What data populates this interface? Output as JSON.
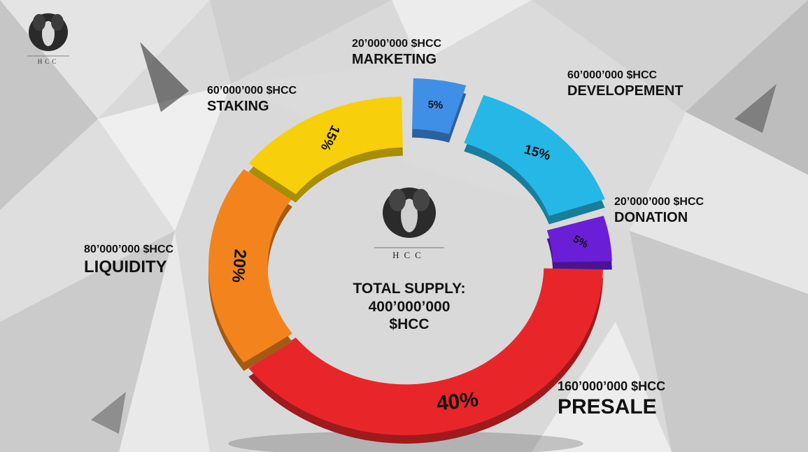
{
  "brand": {
    "logo_text": "HCC"
  },
  "center": {
    "line1": "TOTAL SUPPLY:",
    "line2": "400’000’000",
    "line3": "$HCC"
  },
  "colors": {
    "marketing": "#3f8fe6",
    "developement": "#25b8e6",
    "donation": "#6a1fd6",
    "presale": "#e8262a",
    "liquidity": "#f3841d",
    "staking": "#f7cf0a"
  },
  "chart_data": {
    "type": "pie",
    "title": "",
    "categories": [
      "MARKETING",
      "DEVELOPEMENT",
      "DONATION",
      "PRESALE",
      "LIQUIDITY",
      "STAKING"
    ],
    "values": [
      5,
      15,
      5,
      40,
      20,
      15
    ],
    "value_labels": [
      "5%",
      "15%",
      "5%",
      "40%",
      "20%",
      "15%"
    ],
    "amounts": [
      "20’000’000 $HCC",
      "60’000’000 $HCC",
      "20’000’000 $HCC",
      "160’000’000 $HCC",
      "80’000’000 $HCC",
      "60’000’000 $HCC"
    ],
    "legend": "none",
    "style": "donut"
  }
}
